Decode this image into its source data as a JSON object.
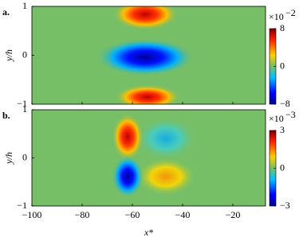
{
  "chart_data": [
    {
      "type": "heatmap",
      "panel_label": "a.",
      "ylabel": "y/h",
      "xlim": [
        -100,
        -7
      ],
      "ylim": [
        -1,
        1
      ],
      "yticks": [
        {
          "value": -1,
          "label": "−1"
        },
        0,
        1
      ],
      "colorbar": {
        "lim": [
          -8,
          8
        ],
        "ticks": [
          {
            "value": -8,
            "label": "−8"
          },
          0,
          8
        ],
        "multiplier_base": "×10",
        "multiplier_exp": "−2"
      }
    },
    {
      "type": "heatmap",
      "panel_label": "b.",
      "ylabel": "y/h",
      "xlabel": "x*",
      "xlim": [
        -100,
        -7
      ],
      "ylim": [
        -1,
        1
      ],
      "xticks": [
        {
          "value": -100,
          "label": "−100"
        },
        {
          "value": -80,
          "label": "−80"
        },
        {
          "value": -60,
          "label": "−60"
        },
        {
          "value": -40,
          "label": "−40"
        },
        {
          "value": -20,
          "label": "−20"
        }
      ],
      "yticks": [
        {
          "value": -1,
          "label": "−1"
        },
        0,
        1
      ],
      "colorbar": {
        "lim": [
          -3,
          3
        ],
        "ticks": [
          {
            "value": -3,
            "label": "−3"
          },
          0,
          3
        ],
        "multiplier_base": "×10",
        "multiplier_exp": "−3"
      }
    }
  ]
}
